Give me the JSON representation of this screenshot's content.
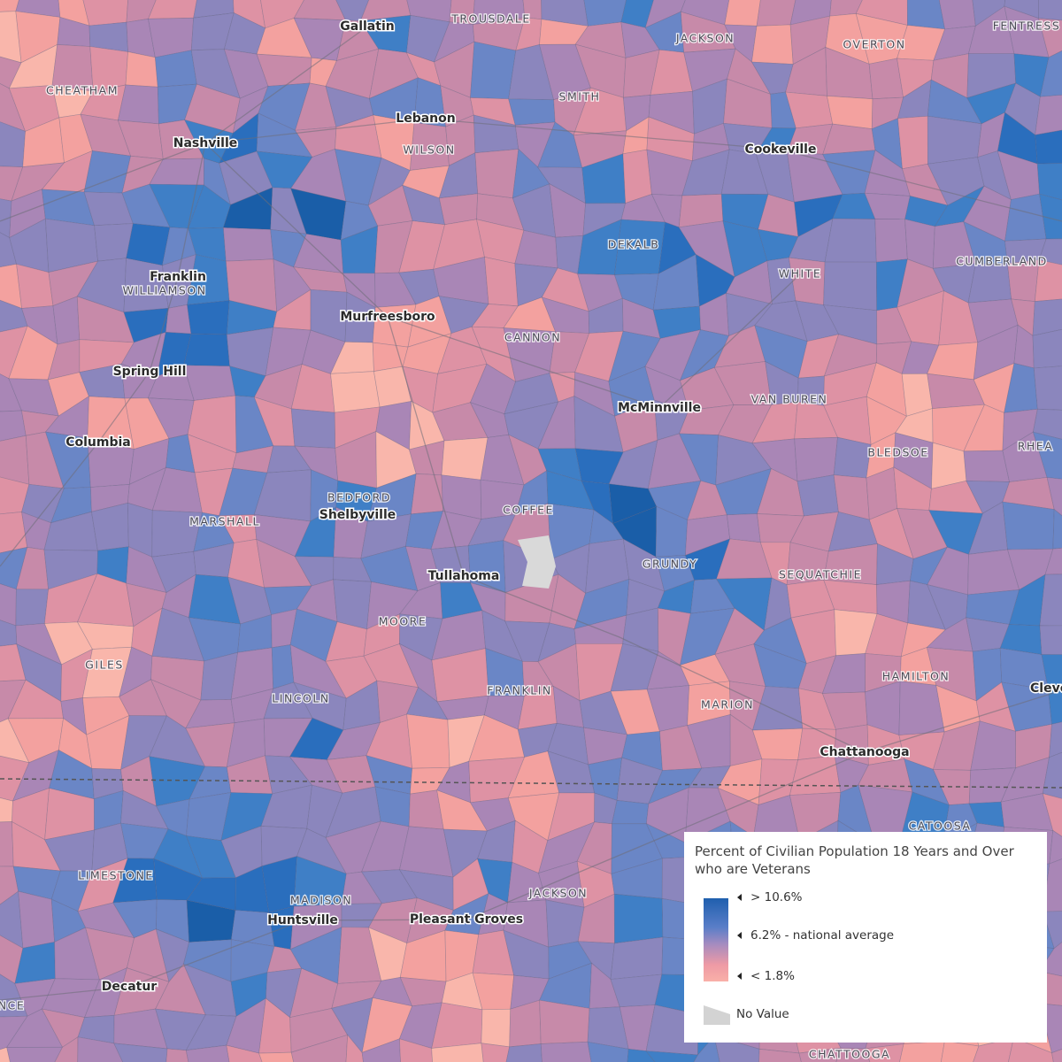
{
  "map": {
    "cities": [
      "Gallatin",
      "Nashville",
      "Lebanon",
      "Cookeville",
      "Franklin",
      "Murfreesboro",
      "Spring Hill",
      "McMinnville",
      "Columbia",
      "Shelbyville",
      "Tullahoma",
      "Chattanooga",
      "Clevel",
      "Huntsville",
      "Pleasant Groves",
      "Decatur"
    ],
    "counties": [
      "TROUSDALE",
      "JACKSON",
      "OVERTON",
      "FENTRESS",
      "CHEATHAM",
      "SMITH",
      "WILSON",
      "DEKALB",
      "CUMBERLAND",
      "WHITE",
      "WILLIAMSON",
      "CANNON",
      "VAN BUREN",
      "BLEDSOE",
      "RHEA",
      "BEDFORD",
      "COFFEE",
      "MARSHALL",
      "GRUNDY",
      "SEQUATCHIE",
      "MOORE",
      "GILES",
      "HAMILTON",
      "FRANKLIN",
      "LINCOLN",
      "MARION",
      "CATOOSA",
      "LIMESTONE",
      "MADISON",
      "JACKSON",
      "NCE",
      "CHATTOOGA"
    ]
  },
  "legend": {
    "title": "Percent of Civilian Population 18 Years and Over who are Veterans",
    "high": "> 10.6%",
    "average": "6.2% - national average",
    "low": "< 1.8%",
    "no_value": "No Value"
  }
}
